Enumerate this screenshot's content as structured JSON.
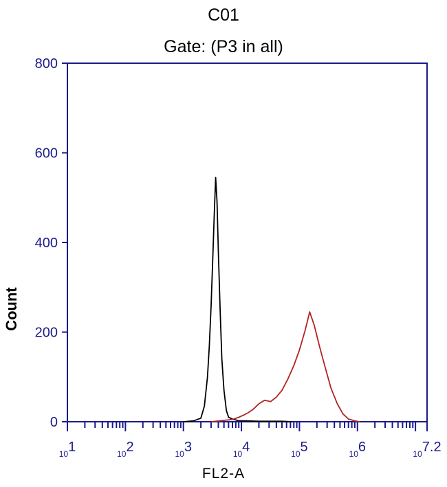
{
  "chart_data": {
    "type": "line",
    "title": "C01",
    "subtitle": "Gate: (P3 in all)",
    "xlabel": "FL2-A",
    "ylabel": "Count",
    "xscale": "log",
    "xlim": [
      10,
      15848931.92
    ],
    "ylim": [
      0,
      800
    ],
    "yticks": [
      0,
      200,
      400,
      600,
      800
    ],
    "yticklabels": [
      "0",
      "200",
      "400",
      "600",
      "800"
    ],
    "xtick_labels": [
      {
        "value": 10,
        "base": "10",
        "exp": "1"
      },
      {
        "value": 100,
        "base": "10",
        "exp": "2"
      },
      {
        "value": 1000,
        "base": "10",
        "exp": "3"
      },
      {
        "value": 10000,
        "base": "10",
        "exp": "4"
      },
      {
        "value": 100000,
        "base": "10",
        "exp": "5"
      },
      {
        "value": 1000000,
        "base": "10",
        "exp": "6"
      },
      {
        "value": 15848931.92,
        "base": "10",
        "exp": "7.2"
      }
    ],
    "grid": false,
    "series": [
      {
        "color": "#000000",
        "x": [
          1000,
          1500,
          2000,
          2300,
          2600,
          2800,
          3000,
          3200,
          3400,
          3600,
          3800,
          4000,
          4300,
          4600,
          5000,
          5500,
          6000,
          7000,
          8000,
          9000,
          12000,
          20000,
          50000,
          75000
        ],
        "y": [
          0,
          2,
          8,
          35,
          100,
          170,
          260,
          360,
          460,
          545,
          490,
          380,
          250,
          140,
          70,
          25,
          10,
          6,
          4,
          2,
          2,
          1,
          1,
          0
        ]
      },
      {
        "color": "#b22222",
        "x": [
          3000,
          5000,
          7000,
          9000,
          11000,
          13000,
          16000,
          20000,
          25000,
          32000,
          40000,
          50000,
          63000,
          80000,
          100000,
          126000,
          150000,
          180000,
          220000,
          280000,
          350000,
          450000,
          560000,
          700000,
          900000,
          1100000
        ],
        "y": [
          0,
          3,
          5,
          10,
          15,
          20,
          28,
          40,
          48,
          45,
          55,
          70,
          95,
          125,
          160,
          205,
          245,
          215,
          170,
          120,
          75,
          40,
          18,
          6,
          2,
          0
        ]
      }
    ]
  }
}
